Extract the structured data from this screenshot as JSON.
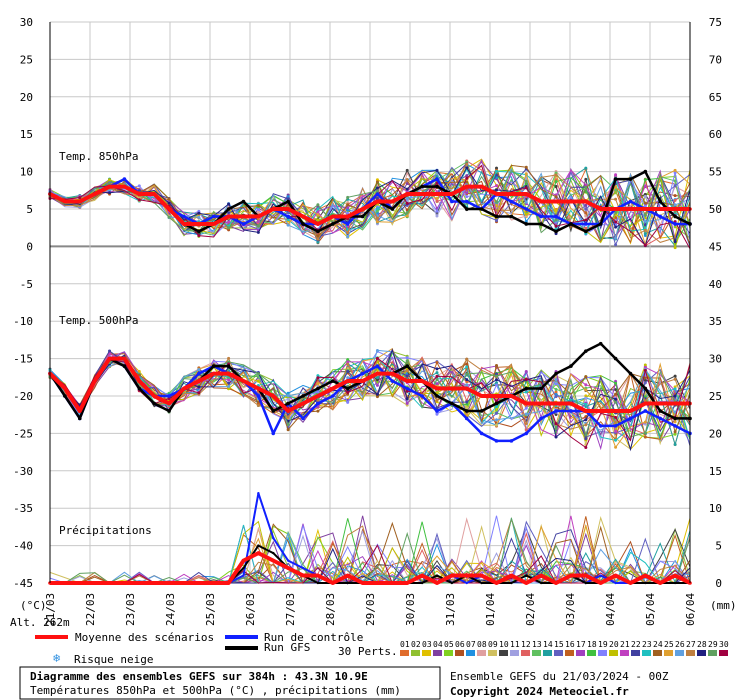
{
  "chart_data": {
    "type": "line",
    "title": "Diagramme des ensembles GEFS sur 384h : 43.3N 10.9E",
    "subtitle": "Températures 850hPa et 500hPa (°C) , précipitations (mm)",
    "run_info": "Ensemble GEFS du 21/03/2024 - 00Z",
    "copyright": "Copyright 2024 Meteociel.fr",
    "altitude": "Alt. 262m",
    "left_unit": "(°C)",
    "right_unit": "(mm)",
    "left_ticks": [
      "30",
      "25",
      "20",
      "15",
      "10",
      "5",
      "0",
      "-5",
      "-10",
      "-15",
      "-20",
      "-25",
      "-30",
      "-35",
      "-40",
      "-45"
    ],
    "right_ticks": [
      "75",
      "70",
      "65",
      "60",
      "55",
      "50",
      "45",
      "40",
      "35",
      "30",
      "25",
      "20",
      "15",
      "10",
      "5",
      "0"
    ],
    "ylim_left": [
      -45,
      30
    ],
    "date_labels": [
      "21/03",
      "22/03",
      "23/03",
      "24/03",
      "25/03",
      "26/03",
      "27/03",
      "28/03",
      "29/03",
      "30/03",
      "31/03",
      "01/04",
      "02/04",
      "03/04",
      "04/04",
      "05/04",
      "06/04"
    ],
    "panel_labels": {
      "t850": "Temp. 850hPa",
      "t500": "Temp. 500hPa",
      "precip": "Précipitations"
    },
    "legend": {
      "mean": "Moyenne des scénarios",
      "control": "Run de contrôle",
      "gfs": "Run GFS",
      "snow": "Risque neige",
      "perts": "30 Perts."
    },
    "pert_labels": [
      "01",
      "02",
      "03",
      "04",
      "05",
      "06",
      "07",
      "08",
      "09",
      "10",
      "11",
      "12",
      "13",
      "14",
      "15",
      "16",
      "17",
      "18",
      "19",
      "20",
      "21",
      "22",
      "23",
      "24",
      "25",
      "26",
      "27",
      "28",
      "29",
      "30"
    ],
    "pert_colors": [
      "#e06c2c",
      "#90c030",
      "#e0c000",
      "#8040a0",
      "#80d020",
      "#b05020",
      "#2090e0",
      "#e0a0a0",
      "#d0c060",
      "#404040",
      "#a0a0e0",
      "#e06060",
      "#60c060",
      "#20a0a0",
      "#6060c0",
      "#c06020",
      "#a040c0",
      "#40c040",
      "#8080ff",
      "#c0c000",
      "#c040c0",
      "#4040a0",
      "#20c0c0",
      "#a06020",
      "#e0a030",
      "#60a0e0",
      "#c08040",
      "#202080",
      "#60a060",
      "#a00040"
    ],
    "series": {
      "t850_mean": [
        7,
        6,
        6,
        7,
        8,
        8,
        7,
        7,
        5,
        3,
        3,
        3,
        4,
        4,
        4,
        5,
        5,
        4,
        3,
        4,
        4,
        5,
        6,
        6,
        7,
        7,
        7,
        7,
        8,
        8,
        7,
        7,
        7,
        6,
        6,
        6,
        6,
        5,
        5,
        5,
        5,
        5,
        5,
        5
      ],
      "t850_control": [
        7,
        6,
        6,
        7,
        8,
        9,
        7,
        7,
        5,
        4,
        3,
        4,
        4,
        3,
        4,
        5,
        4,
        3,
        3,
        4,
        3,
        5,
        7,
        5,
        7,
        8,
        9,
        6,
        6,
        5,
        7,
        6,
        5,
        4,
        4,
        3,
        3,
        3,
        5,
        6,
        5,
        4,
        3,
        3
      ],
      "t850_gfs": [
        7,
        6,
        6,
        7,
        8,
        8,
        7,
        7,
        5,
        3,
        2,
        3,
        5,
        6,
        4,
        5,
        6,
        3,
        2,
        3,
        4,
        4,
        6,
        5,
        7,
        8,
        8,
        7,
        5,
        5,
        4,
        4,
        3,
        3,
        2,
        3,
        2,
        3,
        9,
        9,
        10,
        6,
        4,
        3
      ],
      "t500_mean": [
        -17,
        -19,
        -22,
        -18,
        -15,
        -15,
        -18,
        -20,
        -21,
        -19,
        -18,
        -17,
        -17,
        -18,
        -19,
        -20,
        -22,
        -21,
        -20,
        -19,
        -18,
        -18,
        -17,
        -17,
        -18,
        -18,
        -19,
        -19,
        -19,
        -20,
        -20,
        -20,
        -21,
        -21,
        -21,
        -21,
        -22,
        -22,
        -22,
        -22,
        -21,
        -21,
        -21,
        -21
      ],
      "t500_control": [
        -17,
        -20,
        -23,
        -18,
        -15,
        -16,
        -19,
        -20,
        -20,
        -19,
        -17,
        -16,
        -17,
        -18,
        -20,
        -25,
        -21,
        -23,
        -21,
        -20,
        -18,
        -17,
        -16,
        -18,
        -19,
        -20,
        -22,
        -21,
        -23,
        -25,
        -26,
        -26,
        -25,
        -23,
        -22,
        -22,
        -22,
        -24,
        -24,
        -23,
        -22,
        -23,
        -24,
        -25
      ],
      "t500_gfs": [
        -17,
        -20,
        -23,
        -18,
        -15,
        -16,
        -19,
        -21,
        -22,
        -19,
        -18,
        -16,
        -16,
        -18,
        -19,
        -22,
        -21,
        -20,
        -19,
        -18,
        -19,
        -18,
        -17,
        -17,
        -16,
        -18,
        -20,
        -21,
        -22,
        -22,
        -21,
        -20,
        -19,
        -19,
        -17,
        -16,
        -14,
        -13,
        -15,
        -17,
        -19,
        -22,
        -23,
        -23
      ],
      "precip_mean": [
        0,
        0,
        0,
        0,
        0,
        0,
        0,
        0,
        0,
        0,
        0,
        0,
        0,
        3,
        4,
        3,
        2,
        1,
        1,
        0,
        1,
        0,
        0,
        0,
        0,
        1,
        0,
        1,
        1,
        1,
        0,
        1,
        0,
        1,
        0,
        1,
        1,
        0,
        1,
        0,
        1,
        0,
        1,
        0
      ],
      "precip_control": [
        0,
        0,
        0,
        0,
        0,
        0,
        0,
        0,
        0,
        0,
        0,
        0,
        0,
        1,
        12,
        6,
        3,
        2,
        1,
        0,
        1,
        0,
        0,
        0,
        0,
        1,
        0,
        1,
        0,
        1,
        0,
        1,
        0,
        1,
        0,
        1,
        0,
        1,
        0,
        0,
        1,
        0,
        1,
        0
      ],
      "precip_gfs": [
        0,
        0,
        0,
        0,
        0,
        0,
        0,
        0,
        0,
        0,
        0,
        0,
        0,
        2,
        5,
        4,
        2,
        1,
        0,
        0,
        0,
        0,
        0,
        0,
        0,
        0,
        1,
        0,
        1,
        0,
        0,
        0,
        1,
        0,
        0,
        1,
        0,
        0,
        1,
        0,
        0,
        0,
        0,
        0
      ]
    }
  }
}
